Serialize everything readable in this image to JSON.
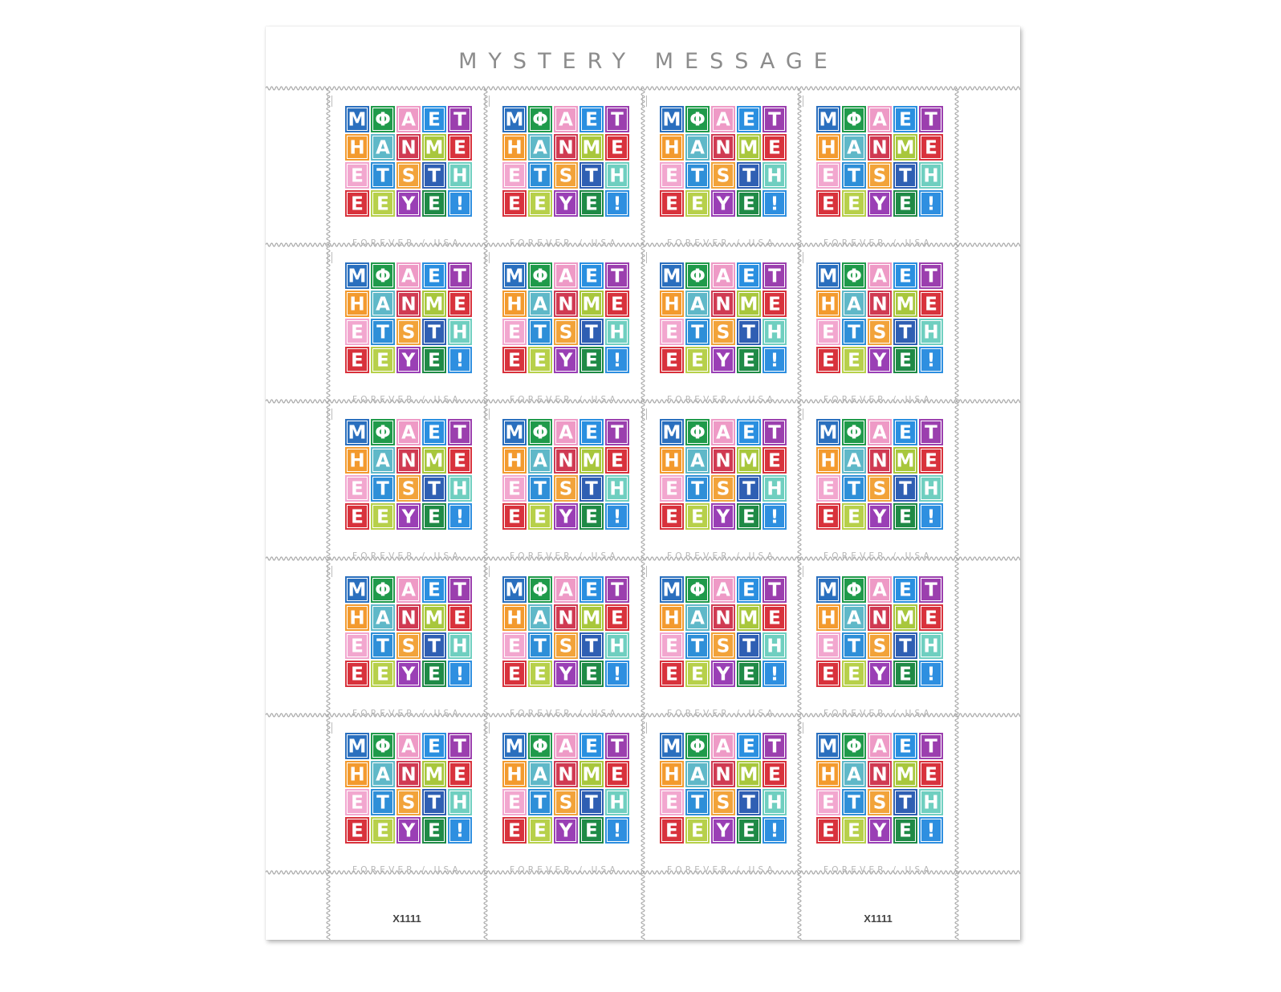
{
  "sheet": {
    "title": "MYSTERY MESSAGE",
    "rows": 5,
    "cols": 4,
    "plate_numbers": [
      "X1111",
      "",
      "",
      "X1111"
    ]
  },
  "stamp": {
    "caption": "FOREVER / USA",
    "message": [
      [
        "M",
        "Φ",
        "A",
        "E",
        "T"
      ],
      [
        "H",
        "A",
        "N",
        "M",
        "E"
      ],
      [
        "E",
        "T",
        "S",
        "T",
        "H"
      ],
      [
        "E",
        "E",
        "Y",
        "E",
        "!"
      ]
    ],
    "tile_colors": [
      [
        "#2a6fbe",
        "#1f9a4a",
        "#ee9ac6",
        "#2a8fe0",
        "#9b3fae"
      ],
      [
        "#f39a2e",
        "#5fb8c8",
        "#d03a52",
        "#a8c73c",
        "#d8323c"
      ],
      [
        "#f2a7cf",
        "#2e8fd8",
        "#f2a33a",
        "#2f5fb3",
        "#6fcfc0"
      ],
      [
        "#d8323c",
        "#b7d04a",
        "#9a3fb5",
        "#1f8a46",
        "#2e8fe0"
      ]
    ]
  }
}
